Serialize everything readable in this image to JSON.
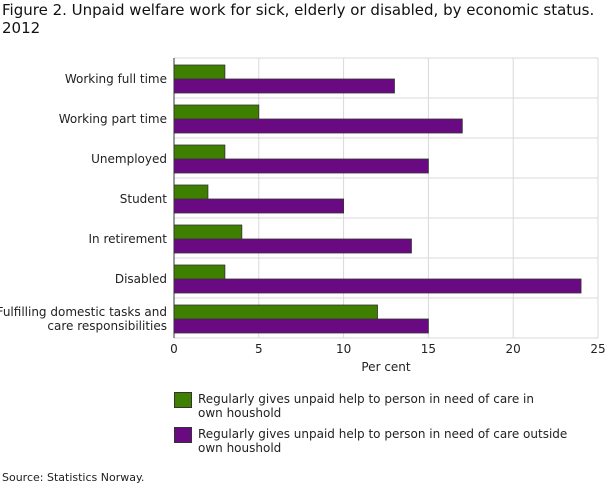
{
  "title": "Figure 2. Unpaid welfare work for sick, elderly or disabled, by economic status. 2012",
  "source": "Source: Statistics Norway.",
  "chart_data": {
    "type": "bar",
    "orientation": "horizontal",
    "title": "Figure 2. Unpaid welfare work for sick, elderly or disabled, by economic status. 2012",
    "xlabel": "Per cent",
    "ylabel": "",
    "xlim": [
      0,
      25
    ],
    "xticks": [
      0,
      5,
      10,
      15,
      20,
      25
    ],
    "grid": true,
    "legend_position": "bottom",
    "categories": [
      "Working full time",
      "Working part time",
      "Unemployed",
      "Student",
      "In retirement",
      "Disabled",
      "Fulfilling domestic tasks and care responsibilities"
    ],
    "series": [
      {
        "name": "Regularly gives unpaid help to person in need of care in own houshold",
        "color": "#3f7f00",
        "values": [
          3,
          5,
          3,
          2,
          4,
          3,
          12
        ]
      },
      {
        "name": "Regularly gives unpaid help to person in need of care outside own houshold",
        "color": "#6a0a82",
        "values": [
          13,
          17,
          15,
          10,
          14,
          24,
          15
        ]
      }
    ]
  }
}
